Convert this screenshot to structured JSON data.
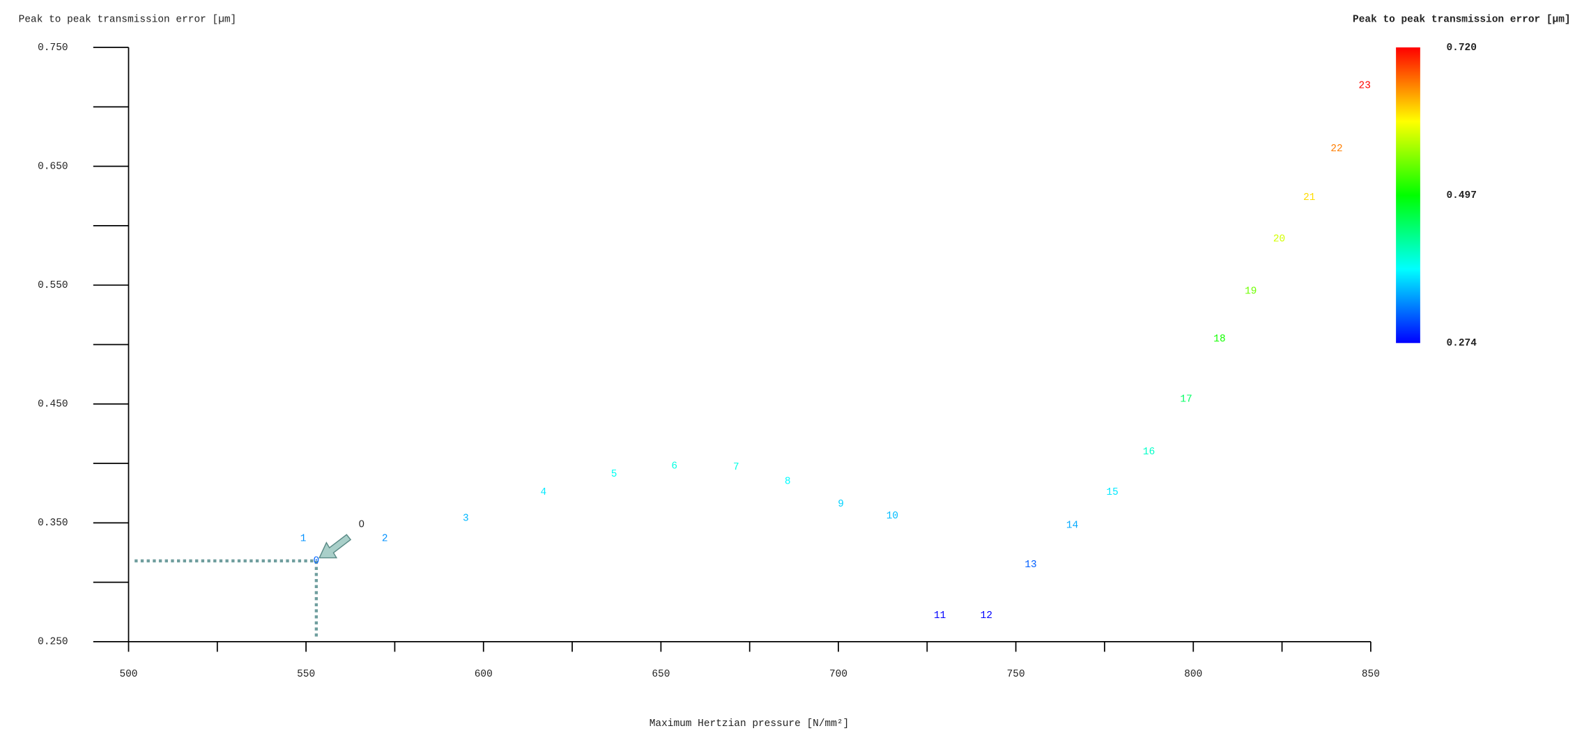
{
  "chart_data": {
    "type": "scatter",
    "y_title": "Peak to peak transmission error [µm]",
    "x_title": "Maximum Hertzian pressure [N/mm²]",
    "series": [
      {
        "labels": [
          "0",
          "1",
          "2",
          "3",
          "4",
          "5",
          "6",
          "7",
          "8",
          "9",
          "10",
          "11",
          "12",
          "13",
          "14",
          "15",
          "16",
          "17",
          "18",
          "19",
          "20",
          "21",
          "22",
          "23"
        ],
        "x": [
          552.9,
          549.2,
          572.2,
          595.0,
          616.9,
          636.8,
          653.8,
          671.2,
          685.7,
          700.7,
          715.2,
          728.6,
          741.7,
          754.2,
          765.9,
          777.2,
          787.5,
          798.0,
          807.4,
          816.2,
          824.2,
          832.7,
          840.4,
          848.3
        ],
        "values": [
          0.318,
          0.337,
          0.337,
          0.354,
          0.376,
          0.391,
          0.398,
          0.397,
          0.385,
          0.366,
          0.356,
          0.272,
          0.272,
          0.315,
          0.348,
          0.376,
          0.41,
          0.454,
          0.505,
          0.545,
          0.589,
          0.624,
          0.665,
          0.718
        ]
      }
    ],
    "xlim": [
      500,
      850
    ],
    "xticks": [
      500,
      550,
      600,
      650,
      700,
      750,
      800,
      850
    ],
    "xminorticks": [
      525,
      575,
      625,
      675,
      725,
      775,
      825
    ],
    "ylim": [
      0.25,
      0.75
    ],
    "yticks": [
      {
        "value": 0.25,
        "label": "0.250"
      },
      {
        "value": 0.35,
        "label": "0.350"
      },
      {
        "value": 0.45,
        "label": "0.450"
      },
      {
        "value": 0.55,
        "label": "0.550"
      },
      {
        "value": 0.65,
        "label": "0.650"
      },
      {
        "value": 0.75,
        "label": "0.750"
      }
    ],
    "yminorticks": [
      0.3,
      0.4,
      0.5,
      0.6,
      0.7
    ],
    "colorbar": {
      "title": "Peak to peak transmission error [µm]",
      "range": [
        0.274,
        0.72
      ],
      "ticks": [
        {
          "value": 0.72,
          "label": "0.720"
        },
        {
          "value": 0.497,
          "label": "0.497"
        },
        {
          "value": 0.274,
          "label": "0.274"
        }
      ],
      "colors": [
        "#0000ff",
        "#00ffff",
        "#00ff00",
        "#ffff00",
        "#ff0000"
      ]
    },
    "annotation": {
      "text": "0",
      "point": 0,
      "color": "#6f9e9e"
    }
  }
}
